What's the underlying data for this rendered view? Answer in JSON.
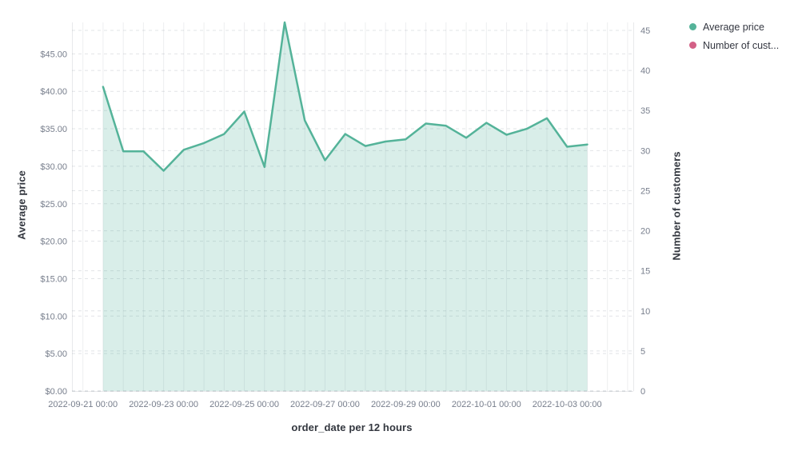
{
  "legend": {
    "items": [
      {
        "label": "Average price",
        "color": "#54B399"
      },
      {
        "label": "Number of cust...",
        "color": "#D36086"
      }
    ]
  },
  "chart_data": {
    "type": "area",
    "title": "",
    "xlabel": "order_date per 12 hours",
    "ylabel_left": "Average price",
    "ylabel_right": "Number of customers",
    "x_axis": {
      "tick_labels": [
        "2022-09-21 00:00",
        "2022-09-23 00:00",
        "2022-09-25 00:00",
        "2022-09-27 00:00",
        "2022-09-29 00:00",
        "2022-10-01 00:00",
        "2022-10-03 00:00"
      ],
      "tick_hours": [
        0,
        48,
        96,
        144,
        192,
        240,
        288
      ],
      "gridline_every_hours": 12
    },
    "left_axis": {
      "range": [
        0,
        49.2
      ],
      "tick_values": [
        0,
        5,
        10,
        15,
        20,
        25,
        30,
        35,
        40,
        45
      ],
      "tick_labels": [
        "$0.00",
        "$5.00",
        "$10.00",
        "$15.00",
        "$20.00",
        "$25.00",
        "$30.00",
        "$35.00",
        "$40.00",
        "$45.00"
      ],
      "gridlines": "dashed"
    },
    "right_axis": {
      "range": [
        0,
        46
      ],
      "tick_values": [
        0,
        5,
        10,
        15,
        20,
        25,
        30,
        35,
        40,
        45
      ],
      "tick_labels": [
        "0",
        "5",
        "10",
        "15",
        "20",
        "25",
        "30",
        "35",
        "40",
        "45"
      ],
      "gridlines": "dashed"
    },
    "series": [
      {
        "name": "Average price",
        "axis": "left",
        "color": "#54B399",
        "fill_opacity": 0.22,
        "x": [
          "2022-09-21 12:00",
          "2022-09-22 00:00",
          "2022-09-22 12:00",
          "2022-09-23 00:00",
          "2022-09-23 12:00",
          "2022-09-24 00:00",
          "2022-09-24 12:00",
          "2022-09-25 00:00",
          "2022-09-25 12:00",
          "2022-09-26 00:00",
          "2022-09-26 12:00",
          "2022-09-27 00:00",
          "2022-09-27 12:00",
          "2022-09-28 00:00",
          "2022-09-28 12:00",
          "2022-09-29 00:00",
          "2022-09-29 12:00",
          "2022-09-30 00:00",
          "2022-09-30 12:00",
          "2022-10-01 00:00",
          "2022-10-01 12:00",
          "2022-10-02 00:00",
          "2022-10-02 12:00",
          "2022-10-03 00:00",
          "2022-10-03 12:00"
        ],
        "x_hours": [
          12,
          24,
          36,
          48,
          60,
          72,
          84,
          96,
          108,
          120,
          132,
          144,
          156,
          168,
          180,
          192,
          204,
          216,
          228,
          240,
          252,
          264,
          276,
          288,
          300
        ],
        "values": [
          40.6,
          32.0,
          32.0,
          29.4,
          32.2,
          33.1,
          34.3,
          37.3,
          29.9,
          49.2,
          36.1,
          30.8,
          34.3,
          32.7,
          33.3,
          33.6,
          35.7,
          35.4,
          33.8,
          35.8,
          34.2,
          35.0,
          36.4,
          32.6,
          32.9
        ]
      },
      {
        "name": "Number of cust...",
        "axis": "right",
        "color": "#D36086",
        "values": []
      }
    ]
  },
  "colors": {
    "tick_text": "#777e8c",
    "title_text": "#33373f",
    "grid_vertical": "rgba(125,133,146,0.14)",
    "grid_horizontal": "rgba(125,133,146,0.22)",
    "plot_border": "rgba(125,133,146,0.18)",
    "background": "#ffffff"
  }
}
